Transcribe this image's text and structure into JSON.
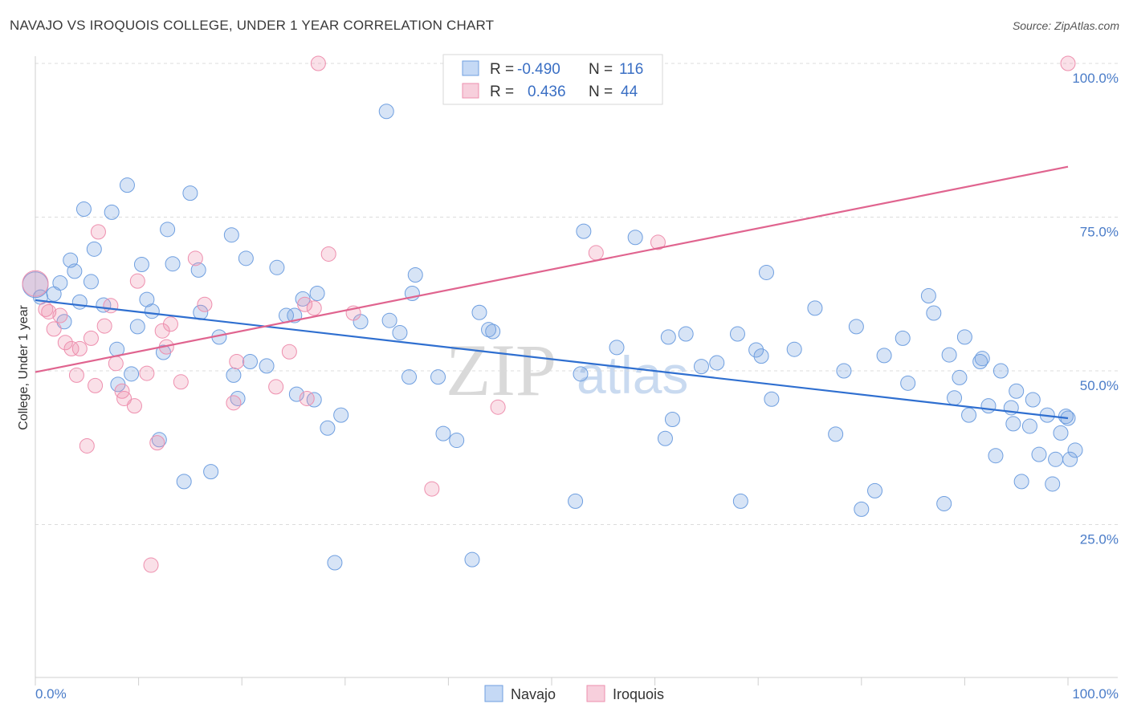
{
  "title": "NAVAJO VS IROQUOIS COLLEGE, UNDER 1 YEAR CORRELATION CHART",
  "source": "Source: ZipAtlas.com",
  "watermark": {
    "zip": "ZIP",
    "atlas": "atlas"
  },
  "legend": [
    {
      "label_r": "R =",
      "r": "-0.490",
      "label_n": "N =",
      "n": "116",
      "color": "#6f9fe0"
    },
    {
      "label_r": "R =",
      "r": "0.436",
      "label_n": "N =",
      "n": "44",
      "color": "#ee8fae"
    }
  ],
  "chart_data": {
    "type": "scatter",
    "ylabel": "College, Under 1 year",
    "xlim": [
      0,
      100
    ],
    "ylim": [
      0,
      102
    ],
    "x_tick_labels": [
      "0.0%",
      "100.0%"
    ],
    "y_ticks": [
      {
        "value": 25,
        "label": "25.0%"
      },
      {
        "value": 50,
        "label": "50.0%"
      },
      {
        "value": 75,
        "label": "75.0%"
      },
      {
        "value": 100,
        "label": "100.0%"
      }
    ],
    "grid": "horizontal dashed",
    "series": [
      {
        "name": "Navajo",
        "color": "#6f9fe0",
        "trend": {
          "x0": 0,
          "y0": 61.5,
          "x1": 100,
          "y1": 42.3
        },
        "points": [
          [
            0.0,
            64.0
          ],
          [
            0.5,
            62.0
          ],
          [
            1.8,
            62.5
          ],
          [
            2.4,
            64.3
          ],
          [
            2.8,
            58.0
          ],
          [
            3.4,
            68.0
          ],
          [
            3.8,
            66.2
          ],
          [
            4.3,
            61.2
          ],
          [
            4.7,
            76.3
          ],
          [
            5.4,
            64.5
          ],
          [
            5.7,
            69.8
          ],
          [
            6.6,
            60.7
          ],
          [
            7.4,
            75.8
          ],
          [
            7.9,
            53.5
          ],
          [
            8.0,
            47.8
          ],
          [
            8.9,
            80.2
          ],
          [
            9.3,
            49.5
          ],
          [
            9.9,
            57.2
          ],
          [
            10.3,
            67.3
          ],
          [
            10.8,
            61.6
          ],
          [
            11.3,
            59.7
          ],
          [
            12.0,
            38.8
          ],
          [
            12.4,
            53.0
          ],
          [
            12.8,
            73.0
          ],
          [
            13.3,
            67.4
          ],
          [
            14.4,
            32.0
          ],
          [
            15.0,
            78.9
          ],
          [
            15.8,
            66.4
          ],
          [
            16.0,
            59.5
          ],
          [
            17.0,
            33.6
          ],
          [
            17.8,
            55.5
          ],
          [
            19.0,
            72.1
          ],
          [
            19.2,
            49.3
          ],
          [
            19.6,
            45.5
          ],
          [
            20.4,
            68.3
          ],
          [
            20.8,
            51.5
          ],
          [
            22.4,
            50.8
          ],
          [
            23.4,
            66.8
          ],
          [
            24.3,
            59.0
          ],
          [
            25.1,
            59.0
          ],
          [
            25.3,
            46.2
          ],
          [
            25.9,
            61.7
          ],
          [
            27.0,
            45.3
          ],
          [
            27.3,
            62.6
          ],
          [
            28.3,
            40.7
          ],
          [
            29.0,
            18.8
          ],
          [
            29.6,
            42.8
          ],
          [
            31.5,
            58.0
          ],
          [
            34.0,
            92.2
          ],
          [
            34.3,
            58.2
          ],
          [
            35.3,
            56.2
          ],
          [
            36.2,
            49.0
          ],
          [
            36.5,
            62.6
          ],
          [
            36.8,
            65.6
          ],
          [
            39.0,
            49.0
          ],
          [
            39.5,
            39.8
          ],
          [
            40.8,
            38.7
          ],
          [
            42.3,
            19.3
          ],
          [
            43.0,
            59.5
          ],
          [
            43.9,
            56.7
          ],
          [
            44.3,
            56.4
          ],
          [
            52.3,
            28.8
          ],
          [
            52.8,
            49.5
          ],
          [
            53.1,
            72.7
          ],
          [
            56.3,
            53.8
          ],
          [
            58.1,
            71.7
          ],
          [
            61.0,
            39.0
          ],
          [
            61.3,
            55.5
          ],
          [
            61.7,
            42.1
          ],
          [
            63.0,
            56.0
          ],
          [
            64.5,
            50.7
          ],
          [
            66.0,
            51.3
          ],
          [
            68.0,
            56.0
          ],
          [
            68.3,
            28.8
          ],
          [
            69.8,
            53.4
          ],
          [
            70.3,
            52.4
          ],
          [
            70.8,
            66.0
          ],
          [
            71.3,
            45.4
          ],
          [
            73.5,
            53.5
          ],
          [
            75.5,
            60.2
          ],
          [
            77.5,
            39.7
          ],
          [
            78.3,
            50.0
          ],
          [
            79.5,
            57.2
          ],
          [
            80.0,
            27.5
          ],
          [
            81.3,
            30.5
          ],
          [
            82.2,
            52.5
          ],
          [
            84.0,
            55.3
          ],
          [
            84.5,
            48.0
          ],
          [
            86.5,
            62.2
          ],
          [
            87.0,
            59.4
          ],
          [
            88.0,
            28.4
          ],
          [
            88.5,
            52.6
          ],
          [
            89.0,
            45.6
          ],
          [
            89.5,
            48.9
          ],
          [
            90.0,
            55.5
          ],
          [
            90.4,
            42.8
          ],
          [
            91.5,
            51.5
          ],
          [
            91.7,
            52.0
          ],
          [
            92.3,
            44.3
          ],
          [
            93.0,
            36.2
          ],
          [
            93.5,
            50.0
          ],
          [
            94.5,
            44.0
          ],
          [
            94.7,
            41.4
          ],
          [
            95.0,
            46.7
          ],
          [
            95.5,
            32.0
          ],
          [
            96.3,
            41.0
          ],
          [
            96.6,
            45.3
          ],
          [
            97.2,
            36.4
          ],
          [
            98.0,
            42.8
          ],
          [
            98.5,
            31.6
          ],
          [
            98.8,
            35.6
          ],
          [
            99.3,
            39.9
          ],
          [
            99.8,
            42.6
          ],
          [
            100.2,
            35.6
          ],
          [
            100.7,
            37.1
          ],
          [
            100.0,
            42.3
          ]
        ]
      },
      {
        "name": "Iroquois",
        "color": "#ee8fae",
        "trend": {
          "x0": 0,
          "y0": 49.8,
          "x1": 100,
          "y1": 83.2
        },
        "points": [
          [
            0.0,
            64.2
          ],
          [
            1.0,
            60.0
          ],
          [
            1.3,
            59.6
          ],
          [
            1.8,
            56.8
          ],
          [
            2.4,
            59.0
          ],
          [
            2.9,
            54.6
          ],
          [
            3.5,
            53.6
          ],
          [
            4.0,
            49.3
          ],
          [
            4.3,
            53.6
          ],
          [
            5.0,
            37.8
          ],
          [
            5.4,
            55.3
          ],
          [
            5.8,
            47.6
          ],
          [
            6.1,
            72.6
          ],
          [
            6.7,
            57.3
          ],
          [
            7.3,
            60.6
          ],
          [
            7.8,
            51.2
          ],
          [
            8.4,
            46.7
          ],
          [
            8.6,
            45.5
          ],
          [
            9.6,
            44.3
          ],
          [
            9.9,
            64.6
          ],
          [
            10.8,
            49.6
          ],
          [
            11.2,
            18.4
          ],
          [
            11.8,
            38.3
          ],
          [
            12.3,
            56.5
          ],
          [
            12.7,
            53.9
          ],
          [
            13.1,
            57.6
          ],
          [
            14.1,
            48.2
          ],
          [
            15.5,
            68.3
          ],
          [
            16.4,
            60.8
          ],
          [
            19.2,
            44.8
          ],
          [
            19.5,
            51.5
          ],
          [
            23.3,
            47.4
          ],
          [
            24.6,
            53.1
          ],
          [
            26.1,
            60.8
          ],
          [
            26.3,
            45.5
          ],
          [
            27.0,
            60.2
          ],
          [
            27.4,
            100.0
          ],
          [
            28.4,
            69.0
          ],
          [
            30.8,
            59.4
          ],
          [
            38.4,
            30.8
          ],
          [
            44.8,
            44.1
          ],
          [
            54.3,
            69.2
          ],
          [
            60.3,
            70.9
          ],
          [
            100.0,
            100.0
          ]
        ]
      }
    ]
  }
}
